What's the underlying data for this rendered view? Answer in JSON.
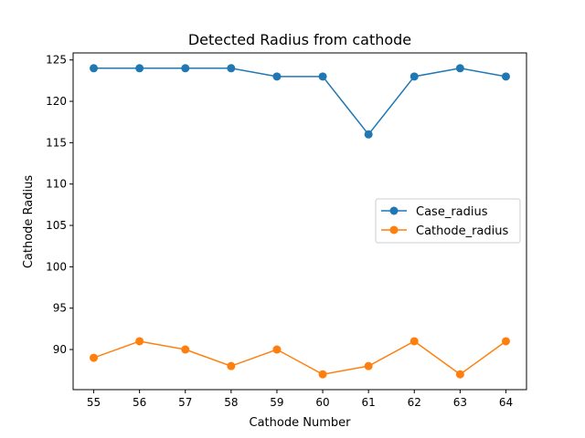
{
  "chart_data": {
    "type": "line",
    "title": "Detected Radius from cathode",
    "xlabel": "Cathode Number",
    "ylabel": "Cathode Radius",
    "x": [
      55,
      56,
      57,
      58,
      59,
      60,
      61,
      62,
      63,
      64
    ],
    "xticks": [
      "55",
      "56",
      "57",
      "58",
      "59",
      "60",
      "61",
      "62",
      "63",
      "64"
    ],
    "yticks": [
      90,
      95,
      100,
      105,
      110,
      115,
      120,
      125
    ],
    "xlim": [
      54.55,
      64.45
    ],
    "ylim": [
      85.15,
      125.85
    ],
    "grid": false,
    "legend": "center-right",
    "series": [
      {
        "name": "Case_radius",
        "color": "#1f77b4",
        "marker": "circle",
        "values": [
          124,
          124,
          124,
          124,
          123,
          123,
          116,
          123,
          124,
          123
        ]
      },
      {
        "name": "Cathode_radius",
        "color": "#ff7f0e",
        "marker": "circle",
        "values": [
          89,
          91,
          90,
          88,
          90,
          87,
          88,
          91,
          87,
          91
        ]
      }
    ]
  }
}
